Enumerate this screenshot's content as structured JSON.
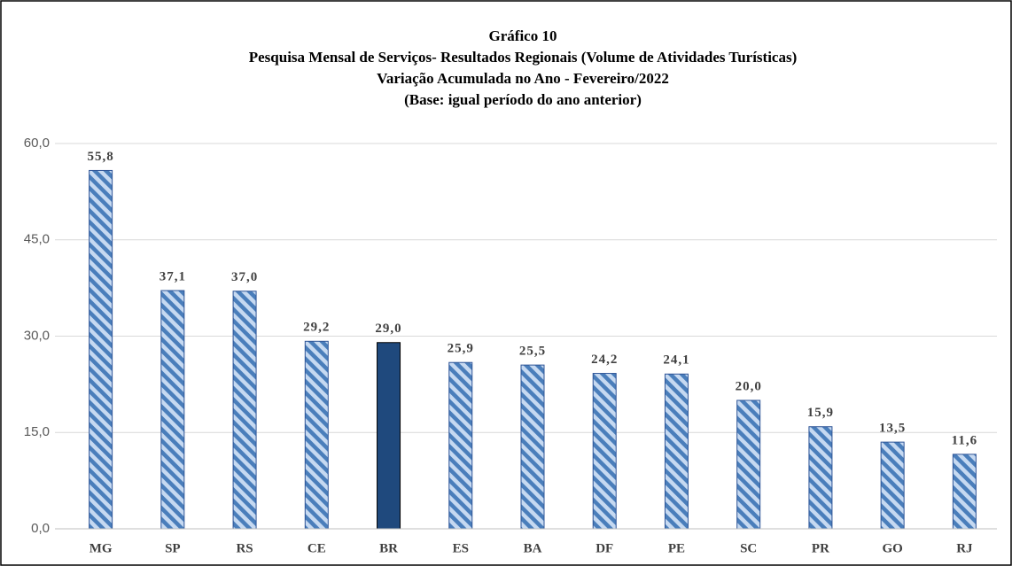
{
  "chart_data": {
    "type": "bar",
    "title": "Gráfico 10",
    "subtitle": [
      "Pesquisa Mensal de Serviços- Resultados Regionais (Volume de Atividades Turísticas)",
      "Variação Acumulada no Ano - Fevereiro/2022",
      "(Base: igual período do ano anterior)"
    ],
    "categories": [
      "MG",
      "SP",
      "RS",
      "CE",
      "BR",
      "ES",
      "BA",
      "DF",
      "PE",
      "SC",
      "PR",
      "GO",
      "RJ"
    ],
    "values": [
      55.8,
      37.1,
      37.0,
      29.2,
      29.0,
      25.9,
      25.5,
      24.2,
      24.1,
      20.0,
      15.9,
      13.5,
      11.6
    ],
    "value_labels": [
      "55,8",
      "37,1",
      "37,0",
      "29,2",
      "29,0",
      "25,9",
      "25,5",
      "24,2",
      "24,1",
      "20,0",
      "15,9",
      "13,5",
      "11,6"
    ],
    "colors": [
      "#4f81bd",
      "#4f81bd",
      "#4f81bd",
      "#4f81bd",
      "#1f497d",
      "#4f81bd",
      "#4f81bd",
      "#4f81bd",
      "#4f81bd",
      "#4f81bd",
      "#4f81bd",
      "#4f81bd",
      "#4f81bd"
    ],
    "hatched": [
      true,
      true,
      true,
      true,
      false,
      true,
      true,
      true,
      true,
      true,
      true,
      true,
      true
    ],
    "ylim": [
      0,
      60
    ],
    "yticks": [
      {
        "value": 0,
        "label": "0,0"
      },
      {
        "value": 15,
        "label": "15,0"
      },
      {
        "value": 30,
        "label": "30,0"
      },
      {
        "value": 45,
        "label": "45,0"
      },
      {
        "value": 60,
        "label": "60,0"
      }
    ],
    "grid": true
  }
}
